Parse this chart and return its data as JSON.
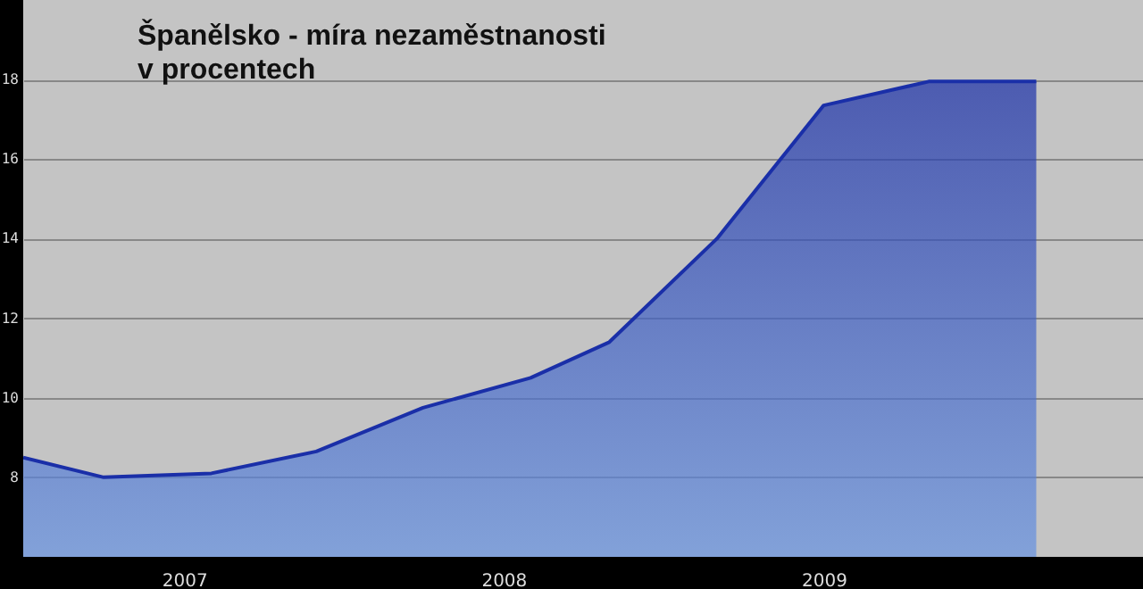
{
  "chart_data": {
    "type": "area",
    "title": "Španělsko - míra nezaměstnanosti v procentech",
    "x": [
      "2006-07",
      "2006-10",
      "2007-02",
      "2007-06",
      "2007-10",
      "2008-02",
      "2008-05",
      "2008-09",
      "2009-01",
      "2009-05",
      "2009-09"
    ],
    "series": [
      {
        "color": "#1a2fa8",
        "values": [
          8.5,
          8.0,
          8.1,
          8.65,
          9.75,
          10.5,
          11.4,
          14.0,
          17.35,
          17.95,
          17.95
        ]
      }
    ],
    "xlim": [
      "2006-07",
      "2010-01"
    ],
    "xticks": [
      "2007",
      "2008",
      "2009"
    ],
    "ylim": [
      6,
      20
    ],
    "yticks": [
      8,
      10,
      12,
      14,
      16,
      18
    ],
    "grid": "y"
  }
}
